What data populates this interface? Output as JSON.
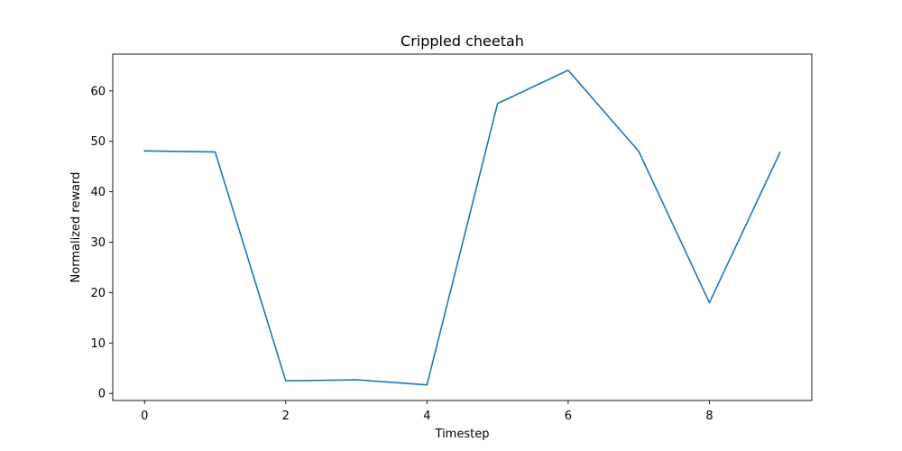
{
  "chart_data": {
    "type": "line",
    "title": "Crippled cheetah",
    "xlabel": "Timestep",
    "ylabel": "Normalized reward",
    "x": [
      0,
      1,
      2,
      3,
      4,
      5,
      6,
      7,
      8,
      9
    ],
    "series": [
      {
        "values": [
          48.1,
          47.9,
          2.5,
          2.7,
          1.7,
          57.5,
          64.1,
          48.0,
          18.0,
          47.8
        ],
        "color": "#1f77b4"
      }
    ],
    "xlim": [
      -0.45,
      9.45
    ],
    "ylim": [
      -1.4,
      67.3
    ],
    "xticks": [
      0,
      2,
      4,
      6,
      8
    ],
    "yticks": [
      0,
      10,
      20,
      30,
      40,
      50,
      60
    ],
    "grid": false,
    "legend": "none"
  }
}
